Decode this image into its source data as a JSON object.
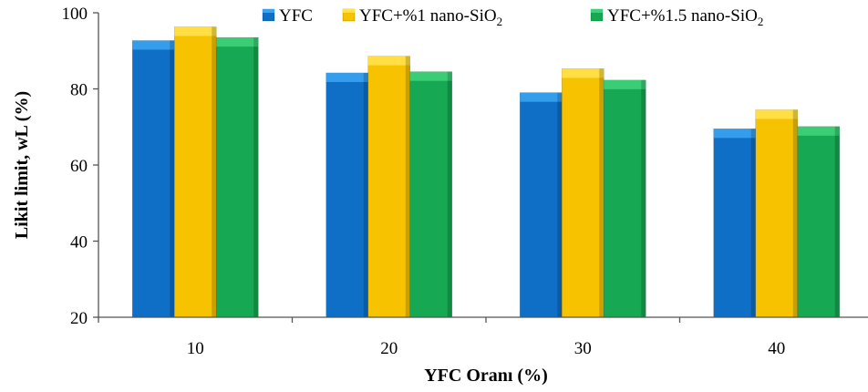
{
  "chart_data": {
    "type": "bar",
    "categories": [
      "10",
      "20",
      "30",
      "40"
    ],
    "series": [
      {
        "name": "YFC",
        "name_sub": "",
        "values": [
          92.7,
          84.2,
          79.0,
          69.5
        ],
        "color": "#0f6fc6",
        "top_color": "#3aa3f0"
      },
      {
        "name": "YFC+%1 nano-SiO",
        "name_sub": "2",
        "values": [
          96.3,
          88.6,
          85.3,
          74.5
        ],
        "color": "#f7c300",
        "top_color": "#ffe24a"
      },
      {
        "name": "YFC+%1.5 nano-SiO",
        "name_sub": "2",
        "values": [
          93.5,
          84.5,
          82.3,
          70.1
        ],
        "color": "#16a852",
        "top_color": "#3fd07a"
      }
    ],
    "xlabel": "YFC Oranı (%)",
    "ylabel": "Likit limit, wL (%)",
    "ylim": [
      20,
      100
    ],
    "yticks": [
      "20",
      "40",
      "60",
      "80",
      "100"
    ],
    "grid": false,
    "legend_position": "top"
  }
}
